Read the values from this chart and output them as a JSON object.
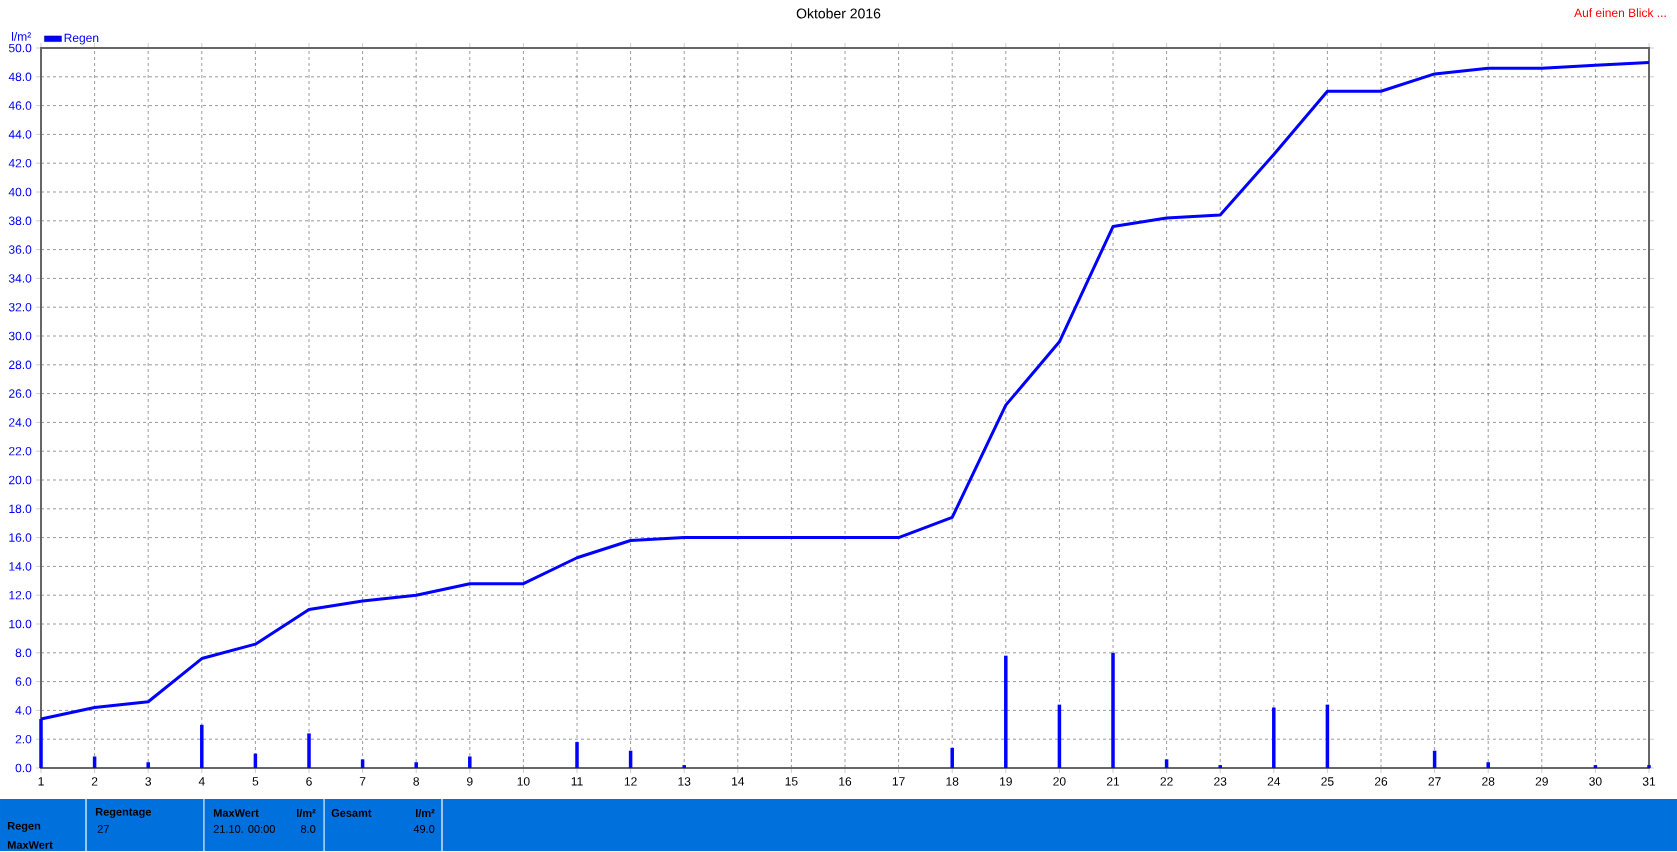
{
  "chart_data": {
    "type": "bar",
    "title": "Oktober 2016",
    "ylabel": "l/m²",
    "x": [
      1,
      2,
      3,
      4,
      5,
      6,
      7,
      8,
      9,
      10,
      11,
      12,
      13,
      14,
      15,
      16,
      17,
      18,
      19,
      20,
      21,
      22,
      23,
      24,
      25,
      26,
      27,
      28,
      29,
      30,
      31
    ],
    "series": [
      {
        "name": "Regen",
        "color": "#0000ff",
        "values": [
          3.4,
          0.8,
          0.4,
          3.0,
          1.0,
          2.4,
          0.6,
          0.4,
          0.8,
          0,
          1.8,
          1.2,
          0.2,
          0,
          0,
          0,
          0,
          1.4,
          7.8,
          4.4,
          8.0,
          0.6,
          0.2,
          4.2,
          4.4,
          0,
          1.2,
          0.4,
          0,
          0.2,
          0.2
        ]
      },
      {
        "type": "line",
        "color": "#0000ff",
        "values": [
          3.4,
          4.2,
          4.6,
          7.6,
          8.6,
          11.0,
          11.6,
          12.0,
          12.8,
          12.8,
          14.6,
          15.8,
          16.0,
          16.0,
          16.0,
          16.0,
          16.0,
          17.4,
          25.2,
          29.6,
          37.6,
          38.2,
          38.4,
          42.6,
          47.0,
          47.0,
          48.2,
          48.6,
          48.6,
          48.8,
          49.0
        ]
      }
    ],
    "xlim": [
      1,
      31
    ],
    "ylim": [
      0,
      50
    ],
    "xticks": [
      1,
      2,
      3,
      4,
      5,
      6,
      7,
      8,
      9,
      10,
      11,
      12,
      13,
      14,
      15,
      16,
      17,
      18,
      19,
      20,
      21,
      22,
      23,
      24,
      25,
      26,
      27,
      28,
      29,
      30,
      31
    ],
    "yticks": [
      {
        "value": 0,
        "label": "0.0"
      },
      {
        "value": 2,
        "label": "2.0"
      },
      {
        "value": 4,
        "label": "4.0"
      },
      {
        "value": 6,
        "label": "6.0"
      },
      {
        "value": 8,
        "label": "8.0"
      },
      {
        "value": 10,
        "label": "10.0"
      },
      {
        "value": 12,
        "label": "12.0"
      },
      {
        "value": 14,
        "label": "14.0"
      },
      {
        "value": 16,
        "label": "16.0"
      },
      {
        "value": 18,
        "label": "18.0"
      },
      {
        "value": 20,
        "label": "20.0"
      },
      {
        "value": 22,
        "label": "22.0"
      },
      {
        "value": 24,
        "label": "24.0"
      },
      {
        "value": 26,
        "label": "26.0"
      },
      {
        "value": 28,
        "label": "28.0"
      },
      {
        "value": 30,
        "label": "30.0"
      },
      {
        "value": 32,
        "label": "32.0"
      },
      {
        "value": 34,
        "label": "34.0"
      },
      {
        "value": 36,
        "label": "36.0"
      },
      {
        "value": 38,
        "label": "38.0"
      },
      {
        "value": 40,
        "label": "40.0"
      },
      {
        "value": 42,
        "label": "42.0"
      },
      {
        "value": 44,
        "label": "44.0"
      },
      {
        "value": 46,
        "label": "46.0"
      },
      {
        "value": 48,
        "label": "48.0"
      },
      {
        "value": 50,
        "label": "50.0"
      }
    ],
    "grid": true,
    "legend": "top left",
    "marker": "none",
    "line_style": "solid",
    "annotations": [
      "Auf einen Blick ...",
      "Regen",
      "MaxWert",
      "Regentage",
      "27",
      "MaxWert",
      "l/m²",
      "21.10.  00:00",
      "8.0",
      "Gesamt",
      "l/m²",
      "49.0"
    ]
  }
}
